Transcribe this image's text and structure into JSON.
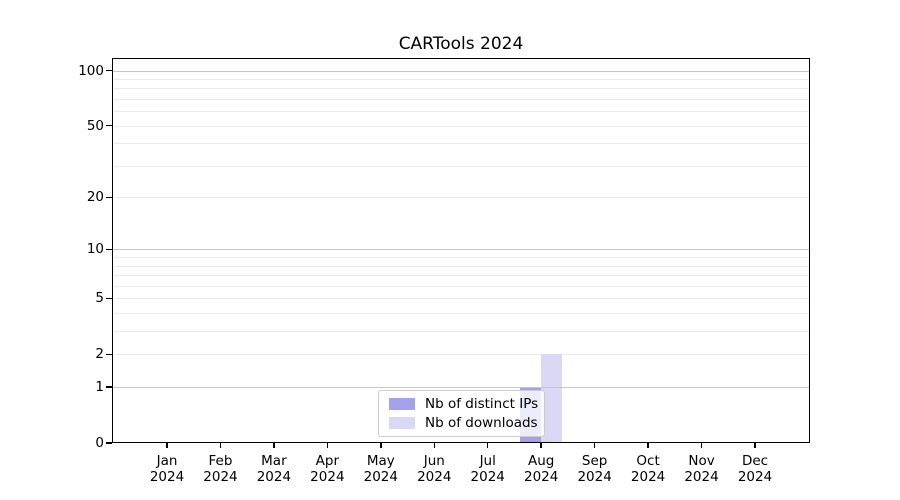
{
  "figure": {
    "background": "#ffffff"
  },
  "chart_data": {
    "type": "bar",
    "title": "CARTools 2024",
    "categories": [
      "Jan 2024",
      "Feb 2024",
      "Mar 2024",
      "Apr 2024",
      "May 2024",
      "Jun 2024",
      "Jul 2024",
      "Aug 2024",
      "Sep 2024",
      "Oct 2024",
      "Nov 2024",
      "Dec 2024"
    ],
    "x_tick_labels": [
      [
        "Jan",
        "2024"
      ],
      [
        "Feb",
        "2024"
      ],
      [
        "Mar",
        "2024"
      ],
      [
        "Apr",
        "2024"
      ],
      [
        "May",
        "2024"
      ],
      [
        "Jun",
        "2024"
      ],
      [
        "Jul",
        "2024"
      ],
      [
        "Aug",
        "2024"
      ],
      [
        "Sep",
        "2024"
      ],
      [
        "Oct",
        "2024"
      ],
      [
        "Nov",
        "2024"
      ],
      [
        "Dec",
        "2024"
      ]
    ],
    "series": [
      {
        "name": "Nb of distinct IPs",
        "color": "#a2a2ea",
        "values": [
          0,
          0,
          0,
          0,
          0,
          0,
          0,
          1,
          0,
          0,
          0,
          0
        ]
      },
      {
        "name": "Nb of downloads",
        "color": "#d9d9f6",
        "values": [
          0,
          0,
          0,
          0,
          0,
          0,
          0,
          2,
          0,
          0,
          0,
          0
        ]
      }
    ],
    "xlabel": "",
    "ylabel": "",
    "y_scale": "log1p",
    "ylim": [
      0,
      117
    ],
    "y_axis_ticks": [
      0,
      1,
      2,
      5,
      10,
      20,
      50,
      100
    ],
    "y_major_gridlines": [
      1,
      10,
      100
    ],
    "y_minor_gridlines": [
      2,
      3,
      4,
      5,
      6,
      7,
      8,
      9,
      20,
      30,
      40,
      50,
      60,
      70,
      80,
      90
    ],
    "grid": true,
    "legend_position": "lower center",
    "data_points": [
      {
        "month": "Aug 2024",
        "nb_distinct_ips": 1,
        "nb_downloads": 2
      }
    ]
  },
  "colors": {
    "axis": "#000000",
    "grid_major": "#c6c6c6",
    "grid_minor": "#ececec",
    "legend_border": "#cccccc",
    "bar_distinct_ips": "#a2a2ea",
    "bar_downloads": "#d9d9f6"
  }
}
